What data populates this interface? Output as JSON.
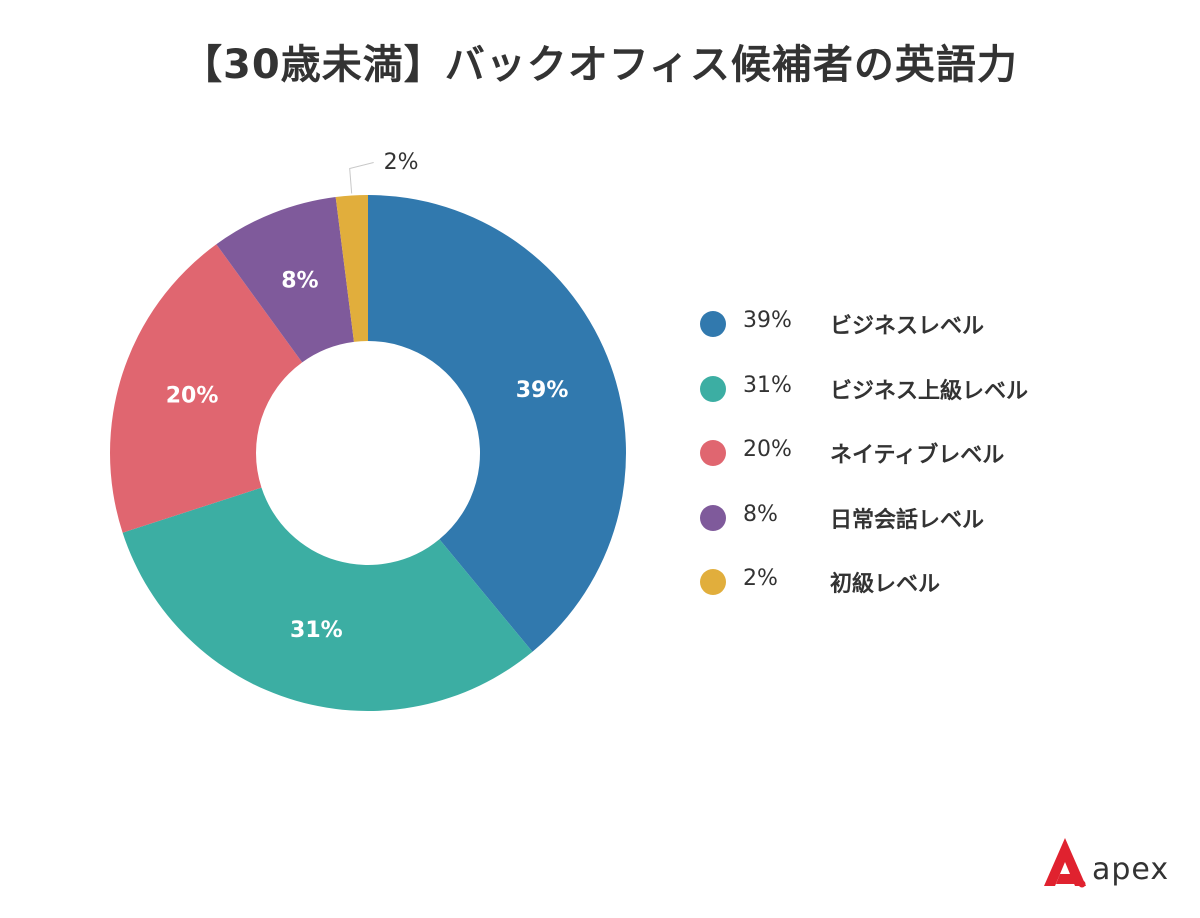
{
  "title": "【30歳未満】バックオフィス候補者の英語力",
  "chart_data": {
    "type": "pie",
    "variant": "donut",
    "title": "【30歳未満】バックオフィス候補者の英語力",
    "categories": [
      "ビジネスレベル",
      "ビジネス上級レベル",
      "ネイティブレベル",
      "日常会話レベル",
      "初級レベル"
    ],
    "values": [
      39,
      31,
      20,
      8,
      2
    ],
    "labels": [
      "39%",
      "31%",
      "20%",
      "8%",
      "2%"
    ],
    "colors": [
      "#3179ae",
      "#3caea3",
      "#e06670",
      "#7f5a9b",
      "#e1ae3c"
    ],
    "legend_position": "right",
    "start_angle": "top",
    "direction": "clockwise"
  },
  "legend": {
    "items": [
      {
        "pct": "39%",
        "name": "ビジネスレベル",
        "color": "#3179ae"
      },
      {
        "pct": "31%",
        "name": "ビジネス上級レベル",
        "color": "#3caea3"
      },
      {
        "pct": "20%",
        "name": "ネイティブレベル",
        "color": "#e06670"
      },
      {
        "pct": "8%",
        "name": "日常会話レベル",
        "color": "#7f5a9b"
      },
      {
        "pct": "2%",
        "name": "初級レベル",
        "color": "#e1ae3c"
      }
    ]
  },
  "logo": {
    "text": "apex",
    "color": "#e0222f"
  }
}
